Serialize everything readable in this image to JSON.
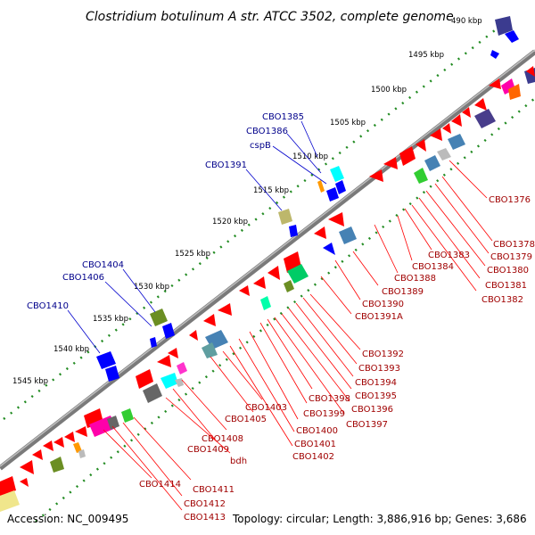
{
  "title": "Clostridium botulinum A str. ATCC 3502, complete genome",
  "footer": {
    "accession": "Accession: NC_009495",
    "summary": "Topology: circular; Length: 3,886,916 bp; Genes: 3,686"
  },
  "ticks": [
    "490 kbp",
    "1495 kbp",
    "1500 kbp",
    "1505 kbp",
    "1510 kbp",
    "1515 kbp",
    "1520 kbp",
    "1525 kbp",
    "1530 kbp",
    "1535 kbp",
    "1540 kbp",
    "1545 kbp"
  ],
  "blue_labels": [
    "CBO1385",
    "CBO1386",
    "cspB",
    "CBO1391",
    "CBO1404",
    "CBO1406",
    "CBO1410"
  ],
  "red_labels": [
    "CBO1376",
    "CBO1378",
    "CBO1379",
    "CBO1380",
    "CBO1381",
    "CBO1382",
    "CBO1383",
    "CBO1384",
    "CBO1388",
    "CBO1389",
    "CBO1390",
    "CBO1391A",
    "CBO1392",
    "CBO1393",
    "CBO1394",
    "CBO1395",
    "CBO1396",
    "CBO1397",
    "CBO1398",
    "CBO1399",
    "CBO1400",
    "CBO1401",
    "CBO1402",
    "CBO1403",
    "CBO1405",
    "CBO1408",
    "CBO1409",
    "bdh",
    "CBO1411",
    "CBO1412",
    "CBO1413",
    "CBO1414"
  ],
  "colors": {
    "forward_gene": "#ff0000",
    "reverse_gene": "#0000ff",
    "backbone": "#888888",
    "forward_tick": "#228b22",
    "label_blue": "#00008b",
    "label_red": "#a00000"
  }
}
